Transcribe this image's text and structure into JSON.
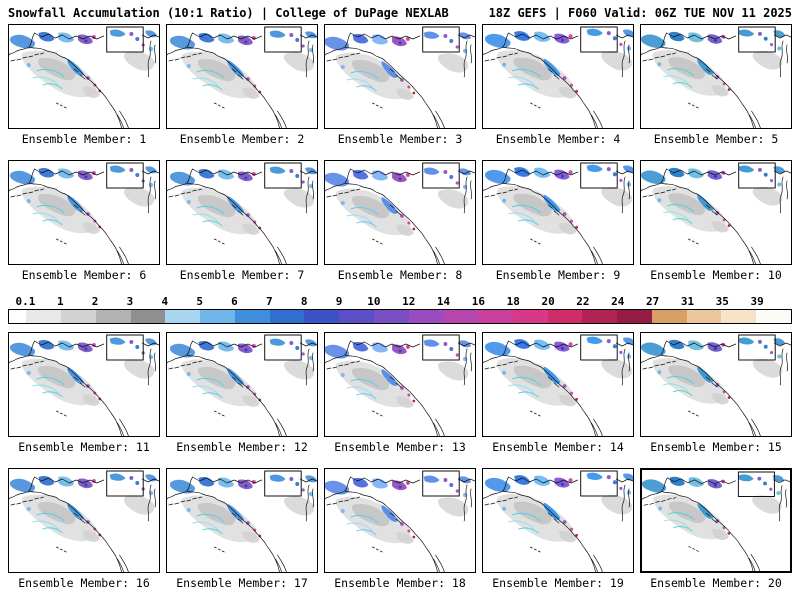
{
  "header": {
    "title_left": "Snowfall Accumulation (10:1 Ratio) | College of DuPage NEXLAB",
    "title_right": "18Z GEFS | F060 Valid: 06Z TUE NOV 11 2025"
  },
  "panels": [
    {
      "label": "Ensemble Member: 1"
    },
    {
      "label": "Ensemble Member: 2"
    },
    {
      "label": "Ensemble Member: 3"
    },
    {
      "label": "Ensemble Member: 4"
    },
    {
      "label": "Ensemble Member: 5"
    },
    {
      "label": "Ensemble Member: 6"
    },
    {
      "label": "Ensemble Member: 7"
    },
    {
      "label": "Ensemble Member: 8"
    },
    {
      "label": "Ensemble Member: 9"
    },
    {
      "label": "Ensemble Member: 10"
    },
    {
      "label": "Ensemble Member: 11"
    },
    {
      "label": "Ensemble Member: 12"
    },
    {
      "label": "Ensemble Member: 13"
    },
    {
      "label": "Ensemble Member: 14"
    },
    {
      "label": "Ensemble Member: 15"
    },
    {
      "label": "Ensemble Member: 16"
    },
    {
      "label": "Ensemble Member: 17"
    },
    {
      "label": "Ensemble Member: 18"
    },
    {
      "label": "Ensemble Member: 19"
    },
    {
      "label": "Ensemble Member: 20"
    }
  ],
  "colorbar": {
    "ticks": [
      "0.1",
      "1",
      "2",
      "3",
      "4",
      "5",
      "6",
      "7",
      "8",
      "9",
      "10",
      "12",
      "14",
      "16",
      "18",
      "20",
      "22",
      "24",
      "27",
      "31",
      "35",
      "39"
    ],
    "segments": [
      "#ffffff",
      "#e8e8e8",
      "#d2d2d2",
      "#b2b2b2",
      "#8f8f8f",
      "#a9d7f2",
      "#6fb6ea",
      "#3f8fdc",
      "#2f6fd0",
      "#3a52c4",
      "#5b4fc8",
      "#7b4fc4",
      "#9a4bbf",
      "#b446ae",
      "#c93f9c",
      "#d93787",
      "#d02b6a",
      "#b22355",
      "#931b45",
      "#d9a066",
      "#ecc79d",
      "#f6e3c8",
      "#fdfbf5"
    ]
  },
  "map_colors": {
    "coastline": "#111111",
    "light_snow": "#d9d9d9",
    "moderate_snow": "#3f8fdc",
    "heavy_snow": "#7b4fc4",
    "extreme_snow": "#c93f9c"
  }
}
